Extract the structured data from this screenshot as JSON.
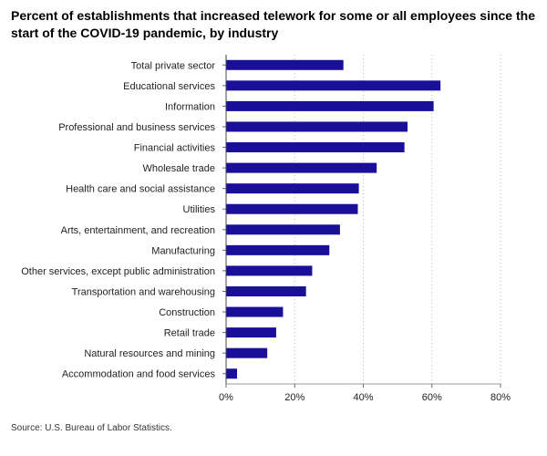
{
  "chart_data": {
    "type": "bar",
    "orientation": "horizontal",
    "title": "Percent of establishments that increased telework for some or all employees since the start of the COVID-19 pandemic, by industry",
    "categories": [
      "Total private sector",
      "Educational services",
      "Information",
      "Professional and business services",
      "Financial activities",
      "Wholesale trade",
      "Health care and social assistance",
      "Utilities",
      "Arts, entertainment, and recreation",
      "Manufacturing",
      "Other services, except public administration",
      "Transportation and warehousing",
      "Construction",
      "Retail trade",
      "Natural resources and mining",
      "Accommodation and food services"
    ],
    "values": [
      34.2,
      62.5,
      60.5,
      52.9,
      52.0,
      43.9,
      38.7,
      38.4,
      33.2,
      30.1,
      25.1,
      23.3,
      16.6,
      14.6,
      12.0,
      3.2
    ],
    "xlim": [
      0,
      80
    ],
    "xticks": [
      0,
      20,
      40,
      60,
      80
    ],
    "tick_suffix": "%",
    "grid": "vertical-dotted",
    "bar_color": "#1a0f99",
    "source": "Source: U.S. Bureau of Labor Statistics."
  }
}
